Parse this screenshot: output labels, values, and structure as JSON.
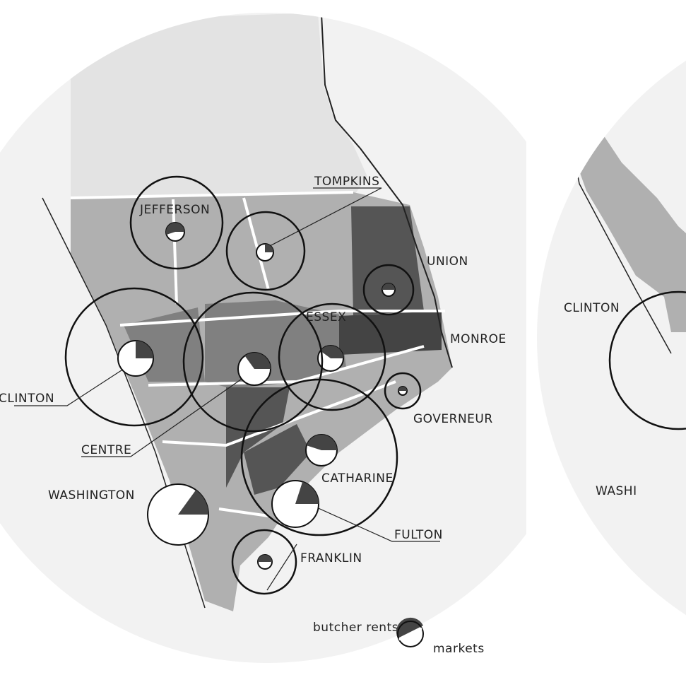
{
  "markets": [
    {
      "label": "JEFFERSON",
      "butcher_share": 55
    },
    {
      "label": "TOMPKINS",
      "butcher_share": 25
    },
    {
      "label": "UNION",
      "butcher_share": 50
    },
    {
      "label": "ESSEX",
      "butcher_share": 40
    },
    {
      "label": "MONROE"
    },
    {
      "label": "CLINTON",
      "butcher_share": 25
    },
    {
      "label": "CENTRE",
      "butcher_share": 35
    },
    {
      "label": "GOVERNEUR",
      "butcher_share": 50
    },
    {
      "label": "CATHARINE",
      "butcher_share": 45
    },
    {
      "label": "FULTON",
      "butcher_share": 20
    },
    {
      "label": "WASHINGTON",
      "butcher_share": 15
    },
    {
      "label": "FRANKLIN",
      "butcher_share": 50
    }
  ],
  "legend": {
    "butcher": "butcher rents",
    "market": "markets"
  },
  "inset": {
    "labels": [
      "CLINTON",
      "WASHI"
    ]
  }
}
